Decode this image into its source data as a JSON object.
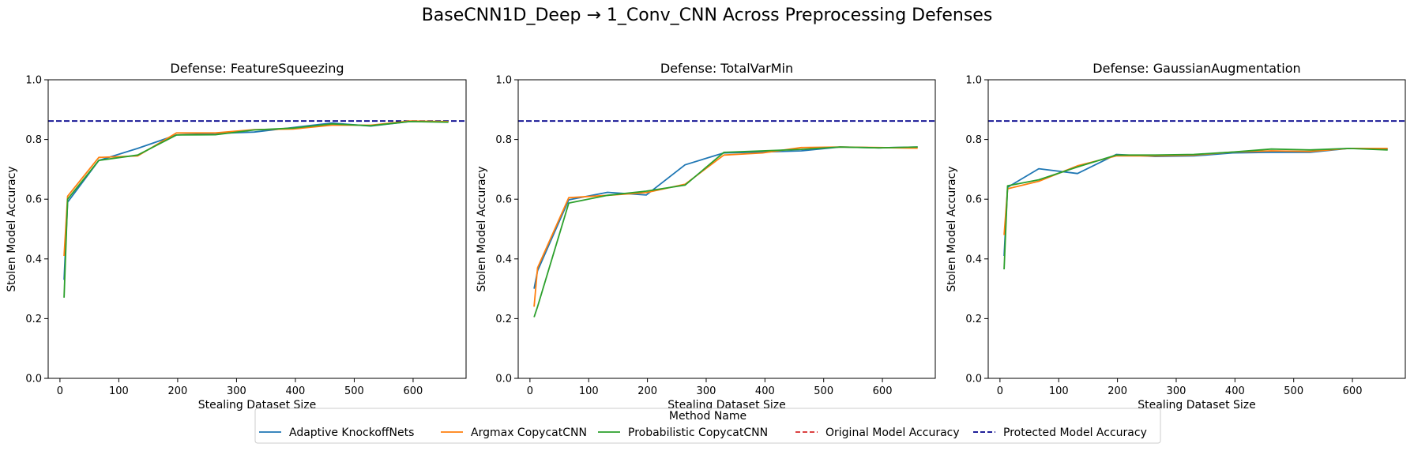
{
  "figure": {
    "title": "BaseCNN1D_Deep → 1_Conv_CNN Across Preprocessing Defenses"
  },
  "legend": {
    "title": "Method Name",
    "entries": [
      {
        "label": "Adaptive KnockoffNets",
        "color": "#1f77b4",
        "style": "solid"
      },
      {
        "label": "Argmax CopycatCNN",
        "color": "#ff7f0e",
        "style": "solid"
      },
      {
        "label": "Probabilistic CopycatCNN",
        "color": "#2ca02c",
        "style": "solid"
      },
      {
        "label": "Original Model Accuracy",
        "color": "#d62728",
        "style": "dashed"
      },
      {
        "label": "Protected Model Accuracy",
        "color": "#00008b",
        "style": "dashed"
      }
    ]
  },
  "chart_data": [
    {
      "type": "line",
      "title": "Defense: FeatureSqueezing",
      "xlabel": "Stealing Dataset Size",
      "ylabel": "Stolen Model Accuracy",
      "xlim": [
        -20,
        690
      ],
      "ylim": [
        0,
        1.0
      ],
      "xticks": [
        0,
        100,
        200,
        300,
        400,
        500,
        600
      ],
      "yticks": [
        0.0,
        0.2,
        0.4,
        0.6,
        0.8,
        1.0
      ],
      "protected_accuracy": 0.862,
      "x": [
        7,
        13,
        66,
        132,
        198,
        264,
        330,
        396,
        462,
        528,
        594,
        660
      ],
      "series": [
        {
          "name": "Adaptive KnockoffNets",
          "color": "#1f77b4",
          "values": [
            0.33,
            0.59,
            0.73,
            0.77,
            0.815,
            0.82,
            0.825,
            0.84,
            0.855,
            0.845,
            0.86,
            0.86
          ]
        },
        {
          "name": "Argmax CopycatCNN",
          "color": "#ff7f0e",
          "values": [
            0.41,
            0.61,
            0.74,
            0.745,
            0.822,
            0.822,
            0.833,
            0.835,
            0.848,
            0.848,
            0.862,
            0.86
          ]
        },
        {
          "name": "Probabilistic CopycatCNN",
          "color": "#2ca02c",
          "values": [
            0.27,
            0.6,
            0.73,
            0.748,
            0.815,
            0.816,
            0.832,
            0.838,
            0.852,
            0.846,
            0.86,
            0.858
          ]
        }
      ]
    },
    {
      "type": "line",
      "title": "Defense: TotalVarMin",
      "xlabel": "Stealing Dataset Size",
      "ylabel": "Stolen Model Accuracy",
      "xlim": [
        -20,
        690
      ],
      "ylim": [
        0,
        1.0
      ],
      "xticks": [
        0,
        100,
        200,
        300,
        400,
        500,
        600
      ],
      "yticks": [
        0.0,
        0.2,
        0.4,
        0.6,
        0.8,
        1.0
      ],
      "protected_accuracy": 0.862,
      "x": [
        7,
        13,
        66,
        132,
        198,
        264,
        330,
        396,
        462,
        528,
        594,
        660
      ],
      "series": [
        {
          "name": "Adaptive KnockoffNets",
          "color": "#1f77b4",
          "values": [
            0.3,
            0.36,
            0.598,
            0.623,
            0.614,
            0.715,
            0.755,
            0.758,
            0.762,
            0.775,
            0.772,
            0.775
          ]
        },
        {
          "name": "Argmax CopycatCNN",
          "color": "#ff7f0e",
          "values": [
            0.24,
            0.37,
            0.605,
            0.613,
            0.622,
            0.65,
            0.748,
            0.755,
            0.773,
            0.775,
            0.773,
            0.771
          ]
        },
        {
          "name": "Probabilistic CopycatCNN",
          "color": "#2ca02c",
          "values": [
            0.205,
            0.24,
            0.587,
            0.613,
            0.627,
            0.647,
            0.757,
            0.762,
            0.767,
            0.775,
            0.772,
            0.775
          ]
        }
      ]
    },
    {
      "type": "line",
      "title": "Defense: GaussianAugmentation",
      "xlabel": "Stealing Dataset Size",
      "ylabel": "Stolen Model Accuracy",
      "xlim": [
        -20,
        690
      ],
      "ylim": [
        0,
        1.0
      ],
      "xticks": [
        0,
        100,
        200,
        300,
        400,
        500,
        600
      ],
      "yticks": [
        0.0,
        0.2,
        0.4,
        0.6,
        0.8,
        1.0
      ],
      "protected_accuracy": 0.862,
      "x": [
        7,
        13,
        66,
        132,
        198,
        264,
        330,
        396,
        462,
        528,
        594,
        660
      ],
      "series": [
        {
          "name": "Adaptive KnockoffNets",
          "color": "#1f77b4",
          "values": [
            0.41,
            0.64,
            0.702,
            0.686,
            0.75,
            0.743,
            0.745,
            0.755,
            0.757,
            0.757,
            0.77,
            0.768
          ]
        },
        {
          "name": "Argmax CopycatCNN",
          "color": "#ff7f0e",
          "values": [
            0.48,
            0.635,
            0.66,
            0.712,
            0.745,
            0.745,
            0.748,
            0.758,
            0.762,
            0.76,
            0.77,
            0.77
          ]
        },
        {
          "name": "Probabilistic CopycatCNN",
          "color": "#2ca02c",
          "values": [
            0.365,
            0.645,
            0.665,
            0.708,
            0.748,
            0.748,
            0.75,
            0.758,
            0.768,
            0.765,
            0.77,
            0.765
          ]
        }
      ]
    }
  ]
}
